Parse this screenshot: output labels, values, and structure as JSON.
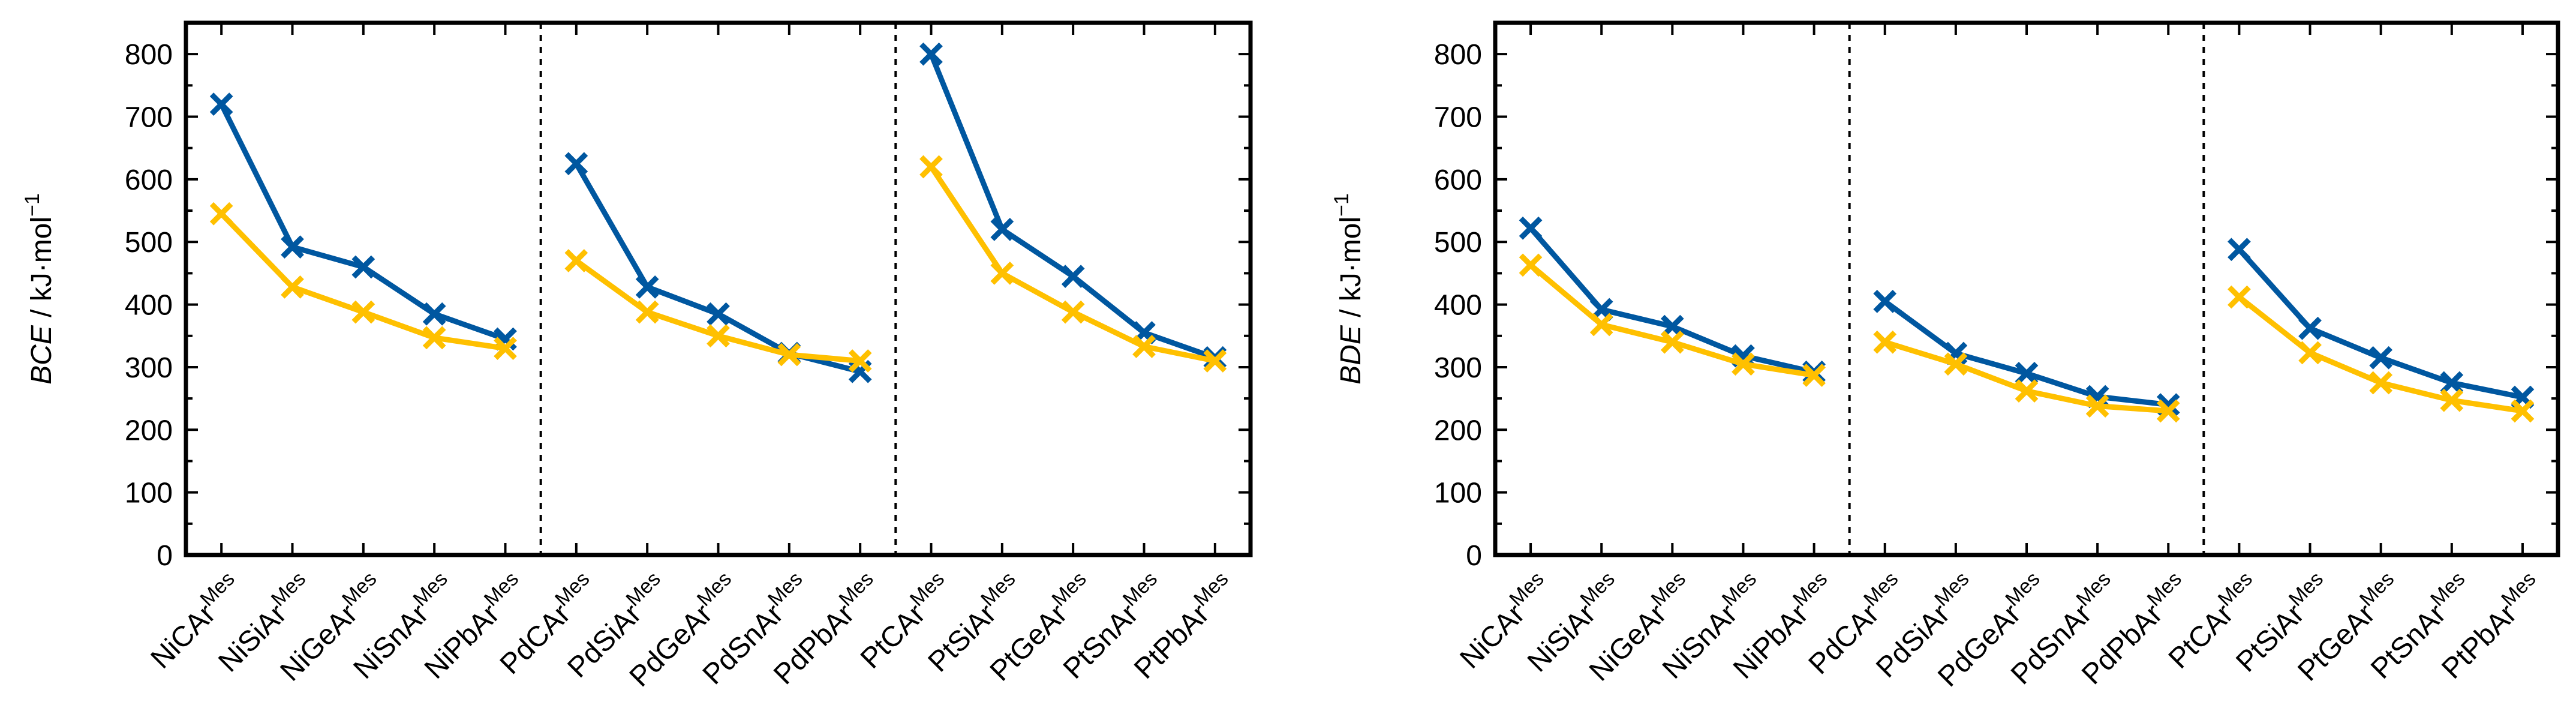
{
  "colors": {
    "blue": "#0057A0",
    "yellow": "#FFC000"
  },
  "charts": [
    {
      "ylabel_main": "BCE",
      "ylabel_unit": " / kJ·mol",
      "ylabel_exp": "−1",
      "yticks": [
        "0",
        "100",
        "200",
        "300",
        "400",
        "500",
        "600",
        "700",
        "800"
      ],
      "categories": [
        {
          "base": "NiCAr",
          "sup": "Mes"
        },
        {
          "base": "NiSiAr",
          "sup": "Mes"
        },
        {
          "base": "NiGeAr",
          "sup": "Mes"
        },
        {
          "base": "NiSnAr",
          "sup": "Mes"
        },
        {
          "base": "NiPbAr",
          "sup": "Mes"
        },
        {
          "base": "PdCAr",
          "sup": "Mes"
        },
        {
          "base": "PdSiAr",
          "sup": "Mes"
        },
        {
          "base": "PdGeAr",
          "sup": "Mes"
        },
        {
          "base": "PdSnAr",
          "sup": "Mes"
        },
        {
          "base": "PdPbAr",
          "sup": "Mes"
        },
        {
          "base": "PtCAr",
          "sup": "Mes"
        },
        {
          "base": "PtSiAr",
          "sup": "Mes"
        },
        {
          "base": "PtGeAr",
          "sup": "Mes"
        },
        {
          "base": "PtSnAr",
          "sup": "Mes"
        },
        {
          "base": "PtPbAr",
          "sup": "Mes"
        }
      ]
    },
    {
      "ylabel_main": "BDE",
      "ylabel_unit": " / kJ·mol",
      "ylabel_exp": "−1",
      "yticks": [
        "0",
        "100",
        "200",
        "300",
        "400",
        "500",
        "600",
        "700",
        "800"
      ],
      "categories": [
        {
          "base": "NiCAr",
          "sup": "Mes"
        },
        {
          "base": "NiSiAr",
          "sup": "Mes"
        },
        {
          "base": "NiGeAr",
          "sup": "Mes"
        },
        {
          "base": "NiSnAr",
          "sup": "Mes"
        },
        {
          "base": "NiPbAr",
          "sup": "Mes"
        },
        {
          "base": "PdCAr",
          "sup": "Mes"
        },
        {
          "base": "PdSiAr",
          "sup": "Mes"
        },
        {
          "base": "PdGeAr",
          "sup": "Mes"
        },
        {
          "base": "PdSnAr",
          "sup": "Mes"
        },
        {
          "base": "PdPbAr",
          "sup": "Mes"
        },
        {
          "base": "PtCAr",
          "sup": "Mes"
        },
        {
          "base": "PtSiAr",
          "sup": "Mes"
        },
        {
          "base": "PtGeAr",
          "sup": "Mes"
        },
        {
          "base": "PtSnAr",
          "sup": "Mes"
        },
        {
          "base": "PtPbAr",
          "sup": "Mes"
        }
      ]
    }
  ],
  "chart_data": [
    {
      "type": "line",
      "title": "",
      "xlabel": "",
      "ylabel": "BCE / kJ·mol−1",
      "ylim": [
        0,
        850
      ],
      "groups": [
        [
          0,
          4
        ],
        [
          5,
          9
        ],
        [
          10,
          14
        ]
      ],
      "categories": [
        "NiCArMes",
        "NiSiArMes",
        "NiGeArMes",
        "NiSnArMes",
        "NiPbArMes",
        "PdCArMes",
        "PdSiArMes",
        "PdGeArMes",
        "PdSnArMes",
        "PdPbArMes",
        "PtCArMes",
        "PtSiArMes",
        "PtGeArMes",
        "PtSnArMes",
        "PtPbArMes"
      ],
      "series": [
        {
          "name": "blue",
          "color": "#0057A0",
          "values": [
            720,
            492,
            460,
            385,
            345,
            625,
            428,
            385,
            322,
            293,
            800,
            520,
            445,
            355,
            315
          ]
        },
        {
          "name": "yellow",
          "color": "#FFC000",
          "values": [
            545,
            428,
            388,
            347,
            330,
            470,
            388,
            350,
            320,
            310,
            620,
            450,
            388,
            333,
            310
          ]
        }
      ]
    },
    {
      "type": "line",
      "title": "",
      "xlabel": "",
      "ylabel": "BDE / kJ·mol−1",
      "ylim": [
        0,
        850
      ],
      "groups": [
        [
          0,
          4
        ],
        [
          5,
          9
        ],
        [
          10,
          14
        ]
      ],
      "categories": [
        "NiCArMes",
        "NiSiArMes",
        "NiGeArMes",
        "NiSnArMes",
        "NiPbArMes",
        "PdCArMes",
        "PdSiArMes",
        "PdGeArMes",
        "PdSnArMes",
        "PdPbArMes",
        "PtCArMes",
        "PtSiArMes",
        "PtGeArMes",
        "PtSnArMes",
        "PtPbArMes"
      ],
      "series": [
        {
          "name": "blue",
          "color": "#0057A0",
          "values": [
            522,
            392,
            365,
            318,
            292,
            405,
            322,
            290,
            253,
            240,
            488,
            362,
            315,
            275,
            252
          ]
        },
        {
          "name": "yellow",
          "color": "#FFC000",
          "values": [
            463,
            368,
            340,
            305,
            287,
            340,
            305,
            262,
            238,
            230,
            412,
            323,
            275,
            247,
            230
          ]
        }
      ]
    }
  ]
}
